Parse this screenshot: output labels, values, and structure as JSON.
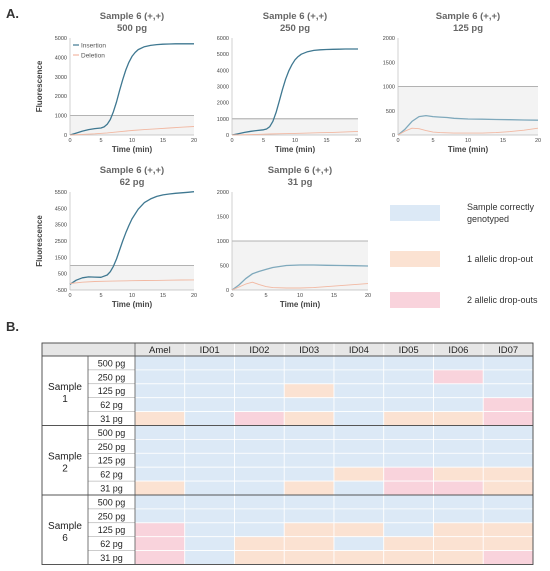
{
  "panel_labels": {
    "a": "A.",
    "b": "B."
  },
  "chart_data": [
    {
      "type": "line",
      "title": "Sample 6 (+,+)",
      "subtitle": "500 pg",
      "xlabel": "Time (min)",
      "ylabel": "Fluorescence",
      "xlim": [
        0,
        20
      ],
      "ylim": [
        0,
        5000
      ],
      "xticks": [
        0,
        5,
        10,
        15,
        20
      ],
      "yticks": [
        0,
        1000,
        2000,
        3000,
        4000,
        5000
      ],
      "threshold": 1000,
      "legend": "top-left",
      "series": [
        {
          "name": "Insertion",
          "color": "#3f7891",
          "x": [
            0,
            1,
            2,
            3,
            4,
            5,
            5.5,
            6,
            6.5,
            7,
            7.5,
            8,
            8.5,
            9,
            9.5,
            10,
            10.5,
            11,
            12,
            13,
            14,
            15,
            16,
            17,
            18,
            19,
            20
          ],
          "y": [
            0,
            100,
            200,
            280,
            330,
            360,
            420,
            550,
            800,
            1200,
            1700,
            2300,
            2850,
            3350,
            3750,
            4050,
            4250,
            4400,
            4550,
            4620,
            4660,
            4680,
            4690,
            4700,
            4700,
            4700,
            4700
          ]
        },
        {
          "name": "Deletion",
          "color": "#f2b8a2",
          "x": [
            0,
            2,
            4,
            6,
            8,
            10,
            12,
            14,
            16,
            18,
            20
          ],
          "y": [
            0,
            30,
            60,
            110,
            170,
            230,
            280,
            320,
            360,
            400,
            440
          ]
        }
      ]
    },
    {
      "type": "line",
      "title": "Sample 6 (+,+)",
      "subtitle": "250 pg",
      "xlabel": "Time (min)",
      "ylabel": "",
      "xlim": [
        0,
        20
      ],
      "ylim": [
        0,
        6000
      ],
      "xticks": [
        0,
        5,
        10,
        15,
        20
      ],
      "yticks": [
        0,
        1000,
        2000,
        3000,
        4000,
        5000,
        6000
      ],
      "threshold": 1000,
      "series": [
        {
          "name": "",
          "color": "#3f7891",
          "x": [
            0,
            1,
            2,
            3,
            4,
            5,
            5.5,
            6,
            6.5,
            7,
            7.5,
            8,
            8.5,
            9,
            9.5,
            10,
            10.5,
            11,
            12,
            13,
            14,
            15,
            16,
            17,
            18,
            19,
            20
          ],
          "y": [
            0,
            80,
            160,
            230,
            280,
            320,
            370,
            520,
            850,
            1400,
            2100,
            2800,
            3450,
            3950,
            4350,
            4650,
            4850,
            5000,
            5150,
            5230,
            5270,
            5290,
            5300,
            5310,
            5320,
            5320,
            5320
          ]
        },
        {
          "name": "",
          "color": "#f2b8a2",
          "x": [
            0,
            2,
            4,
            6,
            8,
            10,
            12,
            14,
            16,
            18,
            20
          ],
          "y": [
            0,
            20,
            40,
            60,
            80,
            100,
            120,
            140,
            160,
            190,
            220
          ]
        }
      ]
    },
    {
      "type": "line",
      "title": "Sample 6 (+,+)",
      "subtitle": "125 pg",
      "xlabel": "Time (min)",
      "ylabel": "",
      "xlim": [
        0,
        20
      ],
      "ylim": [
        0,
        2000
      ],
      "xticks": [
        0,
        5,
        10,
        15,
        20
      ],
      "yticks": [
        0,
        500,
        1000,
        1500,
        2000
      ],
      "threshold": 1000,
      "series": [
        {
          "name": "",
          "color": "#7fa9bc",
          "x": [
            0,
            1,
            2,
            3,
            4,
            5,
            6,
            7,
            8,
            10,
            12,
            14,
            16,
            18,
            20
          ],
          "y": [
            0,
            120,
            280,
            380,
            400,
            380,
            370,
            360,
            345,
            330,
            325,
            320,
            315,
            310,
            305
          ]
        },
        {
          "name": "",
          "color": "#f2b8a2",
          "x": [
            0,
            1,
            2,
            3,
            4,
            5,
            6,
            8,
            10,
            12,
            14,
            16,
            18,
            20
          ],
          "y": [
            0,
            80,
            140,
            130,
            90,
            60,
            50,
            40,
            40,
            40,
            50,
            70,
            100,
            140
          ]
        }
      ]
    },
    {
      "type": "line",
      "title": "Sample 6 (+,+)",
      "subtitle": "62 pg",
      "xlabel": "Time (min)",
      "ylabel": "Fluorescence",
      "xlim": [
        0,
        20
      ],
      "ylim": [
        -500,
        5500
      ],
      "xticks": [
        0,
        5,
        10,
        15,
        20
      ],
      "yticks": [
        -500,
        500,
        1500,
        2500,
        3500,
        4500,
        5500
      ],
      "threshold": 1000,
      "series": [
        {
          "name": "",
          "color": "#3f7891",
          "x": [
            0,
            1,
            2,
            3,
            4,
            5,
            6,
            6.5,
            7,
            7.5,
            8,
            8.5,
            9,
            9.5,
            10,
            11,
            12,
            13,
            14,
            15,
            16,
            17,
            18,
            19,
            20
          ],
          "y": [
            -150,
            100,
            250,
            300,
            290,
            280,
            420,
            620,
            950,
            1400,
            1950,
            2500,
            3000,
            3450,
            3850,
            4450,
            4850,
            5080,
            5230,
            5320,
            5380,
            5420,
            5450,
            5480,
            5520
          ]
        },
        {
          "name": "",
          "color": "#f2b8a2",
          "x": [
            0,
            2,
            4,
            6,
            8,
            10,
            12,
            14,
            16,
            18,
            20
          ],
          "y": [
            -100,
            -20,
            20,
            40,
            60,
            70,
            80,
            90,
            100,
            110,
            120
          ]
        }
      ]
    },
    {
      "type": "line",
      "title": "Sample 6 (+,+)",
      "subtitle": "31 pg",
      "xlabel": "Time (min)",
      "ylabel": "",
      "xlim": [
        0,
        20
      ],
      "ylim": [
        0,
        2000
      ],
      "xticks": [
        0,
        5,
        10,
        15,
        20
      ],
      "yticks": [
        0,
        500,
        1000,
        1500,
        2000
      ],
      "threshold": 1000,
      "series": [
        {
          "name": "",
          "color": "#7fa9bc",
          "x": [
            0,
            1,
            2,
            3,
            4,
            5,
            6,
            8,
            10,
            12,
            14,
            16,
            18,
            20
          ],
          "y": [
            0,
            100,
            230,
            330,
            380,
            420,
            460,
            500,
            510,
            510,
            505,
            500,
            495,
            490
          ]
        },
        {
          "name": "",
          "color": "#f2b8a2",
          "x": [
            0,
            1,
            2,
            3,
            4,
            5,
            6,
            8,
            10,
            12,
            14,
            16,
            18,
            20
          ],
          "y": [
            0,
            60,
            120,
            160,
            110,
            70,
            50,
            40,
            40,
            50,
            70,
            90,
            110,
            130
          ]
        }
      ]
    },
    {
      "type": "table",
      "columns": [
        "Amel",
        "ID01",
        "ID02",
        "ID03",
        "ID04",
        "ID05",
        "ID06",
        "ID07"
      ],
      "groups": [
        {
          "label_line1": "Sample",
          "label_line2": "1",
          "rows": [
            {
              "label": "500 pg",
              "cells": [
                0,
                0,
                0,
                0,
                0,
                0,
                0,
                0
              ]
            },
            {
              "label": "250 pg",
              "cells": [
                0,
                0,
                0,
                0,
                0,
                0,
                2,
                0
              ]
            },
            {
              "label": "125 pg",
              "cells": [
                0,
                0,
                0,
                1,
                0,
                0,
                0,
                0
              ]
            },
            {
              "label": "62 pg",
              "cells": [
                0,
                0,
                0,
                0,
                0,
                0,
                0,
                2
              ]
            },
            {
              "label": "31 pg",
              "cells": [
                1,
                0,
                2,
                1,
                0,
                1,
                1,
                2
              ]
            }
          ]
        },
        {
          "label_line1": "Sample",
          "label_line2": "2",
          "rows": [
            {
              "label": "500 pg",
              "cells": [
                0,
                0,
                0,
                0,
                0,
                0,
                0,
                0
              ]
            },
            {
              "label": "250 pg",
              "cells": [
                0,
                0,
                0,
                0,
                0,
                0,
                0,
                0
              ]
            },
            {
              "label": "125 pg",
              "cells": [
                0,
                0,
                0,
                0,
                0,
                0,
                0,
                0
              ]
            },
            {
              "label": "62 pg",
              "cells": [
                0,
                0,
                0,
                0,
                1,
                2,
                1,
                1
              ]
            },
            {
              "label": "31 pg",
              "cells": [
                1,
                0,
                0,
                1,
                0,
                2,
                2,
                1
              ]
            }
          ]
        },
        {
          "label_line1": "Sample",
          "label_line2": "6",
          "rows": [
            {
              "label": "500 pg",
              "cells": [
                0,
                0,
                0,
                0,
                0,
                0,
                0,
                0
              ]
            },
            {
              "label": "250 pg",
              "cells": [
                0,
                0,
                0,
                0,
                0,
                0,
                0,
                0
              ]
            },
            {
              "label": "125 pg",
              "cells": [
                2,
                0,
                0,
                1,
                1,
                0,
                1,
                1
              ]
            },
            {
              "label": "62 pg",
              "cells": [
                2,
                0,
                1,
                1,
                0,
                1,
                1,
                1
              ]
            },
            {
              "label": "31 pg",
              "cells": [
                2,
                0,
                1,
                1,
                1,
                1,
                1,
                2
              ]
            }
          ]
        }
      ],
      "key": [
        {
          "code": 0,
          "label_lines": [
            "Sample correctly",
            "genotyped"
          ],
          "color": "#dce9f6"
        },
        {
          "code": 1,
          "label_lines": [
            "1 allelic drop-out"
          ],
          "color": "#fbe2d2"
        },
        {
          "code": 2,
          "label_lines": [
            "2 allelic drop-outs"
          ],
          "color": "#f9d3dc"
        }
      ]
    }
  ]
}
